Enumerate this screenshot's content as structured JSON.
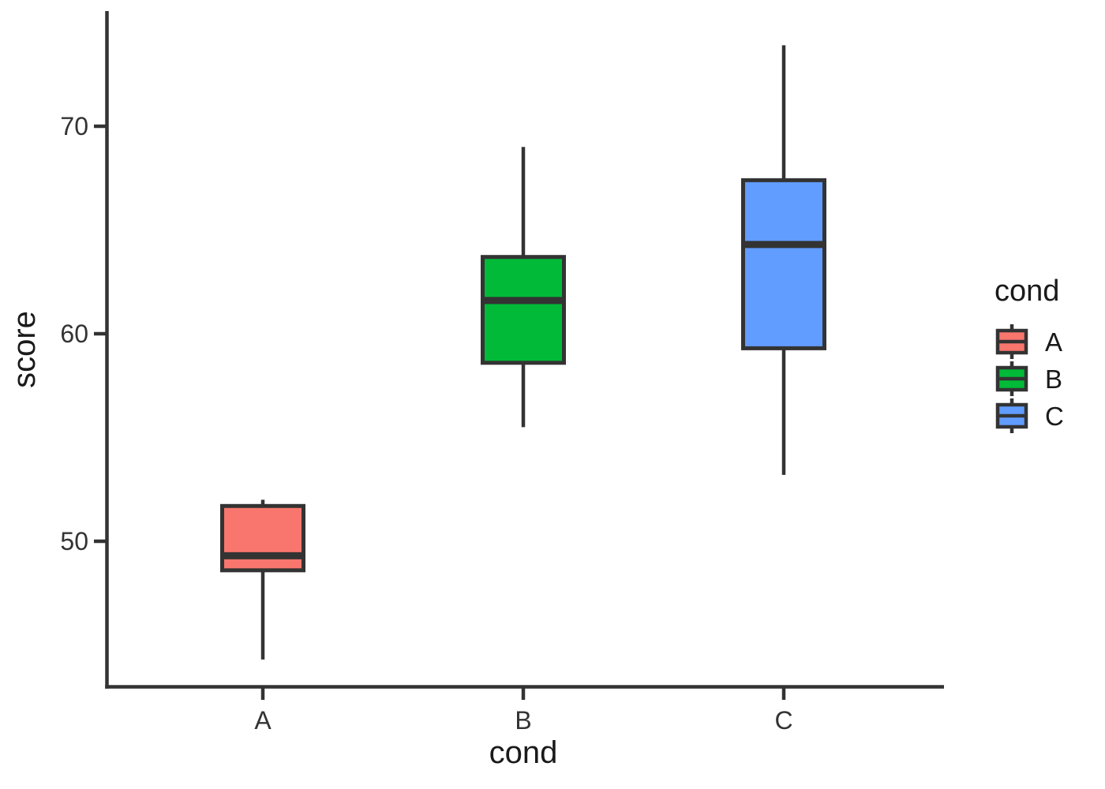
{
  "chart_data": {
    "type": "boxplot",
    "title": "",
    "xlabel": "cond",
    "ylabel": "score",
    "categories": [
      "A",
      "B",
      "C"
    ],
    "series": [
      {
        "name": "A",
        "color": "#F8766D",
        "lower_whisker": 44.3,
        "q1": 48.6,
        "median": 49.3,
        "q3": 51.7,
        "upper_whisker": 52.0
      },
      {
        "name": "B",
        "color": "#00BA38",
        "lower_whisker": 55.5,
        "q1": 58.6,
        "median": 61.6,
        "q3": 63.7,
        "upper_whisker": 69.0
      },
      {
        "name": "C",
        "color": "#619CFF",
        "lower_whisker": 53.2,
        "q1": 59.3,
        "median": 64.3,
        "q3": 67.4,
        "upper_whisker": 73.9
      }
    ],
    "y_ticks": [
      "50",
      "60",
      "70"
    ],
    "y_tick_values": [
      50,
      60,
      70
    ],
    "ylim": [
      43.0,
      75.5
    ],
    "grid": "off",
    "legend_position": "right"
  },
  "legend": {
    "title": "cond",
    "items": [
      {
        "label": "A",
        "color": "#F8766D"
      },
      {
        "label": "B",
        "color": "#00BA38"
      },
      {
        "label": "C",
        "color": "#619CFF"
      }
    ]
  },
  "style": {
    "stroke_color": "#333333",
    "background": "#FFFFFF"
  }
}
